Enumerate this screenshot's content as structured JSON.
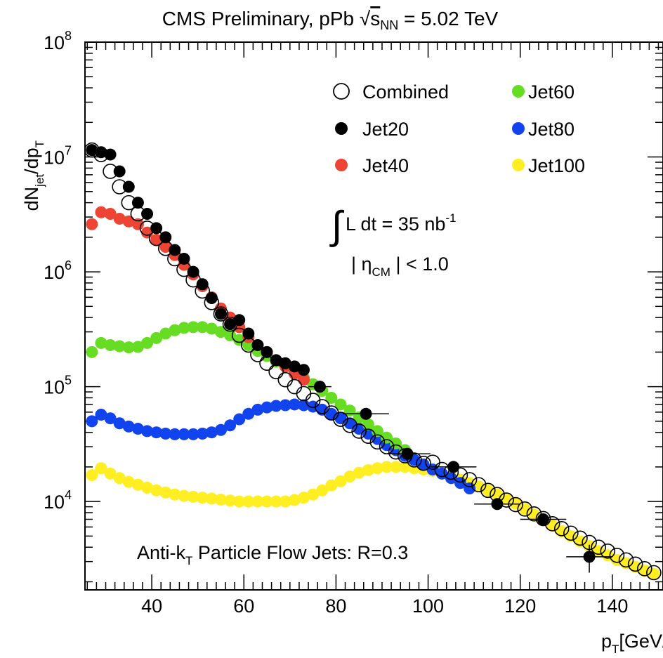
{
  "chart_data": {
    "type": "scatter",
    "title": {
      "prefix": "CMS Preliminary, pPb ",
      "sqrt_symbol": "√",
      "s": "s",
      "sub": "NN",
      "suffix": " = 5.02 TeV"
    },
    "xlabel": {
      "main": "p",
      "sub": "T",
      "unit": "[GeV/c]"
    },
    "ylabel": {
      "a": "dN",
      "a_sub": "jet",
      "b": "/dp",
      "b_sub": "T"
    },
    "x_ticks": [
      "40",
      "60",
      "80",
      "100",
      "120",
      "140"
    ],
    "x_tick_values": [
      40,
      60,
      80,
      100,
      120,
      140
    ],
    "y_ticks": [
      {
        "base": "10",
        "exp": "4",
        "value": 10000
      },
      {
        "base": "10",
        "exp": "5",
        "value": 100000
      },
      {
        "base": "10",
        "exp": "6",
        "value": 1000000
      },
      {
        "base": "10",
        "exp": "7",
        "value": 10000000
      },
      {
        "base": "10",
        "exp": "8",
        "value": 100000000
      }
    ],
    "xlim": [
      25.5,
      151
    ],
    "ylim": [
      1700,
      100000000
    ],
    "y_log": true,
    "legend_position": "top-right",
    "legend": [
      {
        "name": "Combined",
        "color": "#000000",
        "marker": "open-circle"
      },
      {
        "name": "Jet60",
        "color": "#66dd22",
        "marker": "filled-circle"
      },
      {
        "name": "Jet20",
        "color": "#000000",
        "marker": "filled-circle"
      },
      {
        "name": "Jet80",
        "color": "#1144ee",
        "marker": "filled-circle"
      },
      {
        "name": "Jet40",
        "color": "#ee4433",
        "marker": "filled-circle"
      },
      {
        "name": "Jet100",
        "color": "#ffee22",
        "marker": "filled-circle"
      }
    ],
    "annotations": {
      "lumi_integral": "∫",
      "lumi_text": "L dt = 35 nb",
      "lumi_exp": "-1",
      "eta_prefix": "| η",
      "eta_sub": "CM",
      "eta_suffix": " | < 1.0",
      "algo_prefix": "Anti-k",
      "algo_sub": "T",
      "algo_suffix": " Particle Flow Jets: R=0.3"
    },
    "series": [
      {
        "name": "Jet20",
        "color": "#000000",
        "x": [
          27,
          29,
          31,
          33,
          35,
          37,
          39,
          41,
          43,
          45,
          47,
          49,
          51,
          53,
          55,
          57,
          59,
          61,
          63,
          65,
          67,
          69,
          71,
          73,
          76.5,
          86.5,
          95.5,
          105.5,
          115,
          125,
          135
        ],
        "y": [
          11500000,
          11000000,
          10500000,
          7500000,
          5500000,
          4000000,
          3200000,
          2400000,
          2000000,
          1550000,
          1300000,
          1000000,
          780000,
          590000,
          430000,
          350000,
          380000,
          290000,
          230000,
          200000,
          170000,
          160000,
          150000,
          140000,
          100000,
          58000,
          26000,
          20000,
          9500,
          7000,
          3300
        ],
        "xerr": [
          0,
          0,
          0,
          0,
          0,
          0,
          0,
          0,
          0,
          0,
          0,
          0,
          0,
          0,
          0,
          0,
          0,
          0,
          0,
          0,
          0,
          0,
          0,
          0,
          2.5,
          5,
          5,
          5,
          5,
          5,
          5
        ],
        "yerr": [
          0,
          0,
          0,
          0,
          0,
          0,
          0,
          0,
          0,
          0,
          0,
          0,
          0,
          0,
          0,
          0,
          0,
          0,
          0,
          0,
          0,
          0,
          0,
          0,
          0,
          0,
          0,
          0,
          1000,
          0,
          900
        ]
      },
      {
        "name": "Jet40",
        "color": "#ee4433",
        "x": [
          27,
          29,
          31,
          33,
          35,
          37,
          39,
          41,
          43,
          45,
          47,
          49,
          51,
          53,
          55,
          57,
          59,
          61,
          63,
          65,
          67,
          69,
          71,
          73
        ],
        "y": [
          2600000,
          3300000,
          3200000,
          2900000,
          2750000,
          2600000,
          2200000,
          1900000,
          1650000,
          1400000,
          1150000,
          950000,
          750000,
          600000,
          480000,
          400000,
          330000,
          270000,
          230000,
          200000,
          170000,
          150000,
          130000,
          115000
        ]
      },
      {
        "name": "Jet60",
        "color": "#66dd22",
        "x": [
          27,
          29,
          31,
          33,
          35,
          37,
          39,
          41,
          43,
          45,
          47,
          49,
          51,
          53,
          55,
          57,
          59,
          61,
          63,
          65,
          67,
          69,
          71,
          73,
          75,
          77,
          79,
          81,
          83,
          85,
          87,
          89,
          91,
          93,
          95
        ],
        "y": [
          200000,
          240000,
          230000,
          225000,
          220000,
          222000,
          240000,
          265000,
          290000,
          310000,
          325000,
          330000,
          330000,
          320000,
          300000,
          280000,
          255000,
          230000,
          205000,
          185000,
          165000,
          150000,
          135000,
          120000,
          105000,
          92000,
          80000,
          70000,
          62000,
          54000,
          47000,
          41000,
          36000,
          32000,
          28000
        ]
      },
      {
        "name": "Jet80",
        "color": "#1144ee",
        "x": [
          27,
          29,
          31,
          33,
          35,
          37,
          39,
          41,
          43,
          45,
          47,
          49,
          51,
          53,
          55,
          57,
          59,
          61,
          63,
          65,
          67,
          69,
          71,
          73,
          75,
          77,
          79,
          81,
          83,
          85,
          87,
          89,
          91,
          93,
          95,
          97,
          99,
          101,
          103,
          105,
          107,
          109
        ],
        "y": [
          50000,
          57000,
          53000,
          48000,
          45000,
          43000,
          41000,
          40000,
          39000,
          38500,
          38500,
          38500,
          39000,
          40000,
          42000,
          46000,
          52000,
          58000,
          63000,
          66000,
          68000,
          69000,
          70000,
          69000,
          67000,
          63000,
          58000,
          53000,
          48000,
          43000,
          39000,
          35000,
          31000,
          28000,
          25000,
          23000,
          21000,
          19000,
          17500,
          16000,
          14500,
          13000
        ]
      },
      {
        "name": "Jet100",
        "color": "#ffee22",
        "x": [
          27,
          29,
          31,
          33,
          35,
          37,
          39,
          41,
          43,
          45,
          47,
          49,
          51,
          53,
          55,
          57,
          59,
          61,
          63,
          65,
          67,
          69,
          71,
          73,
          75,
          77,
          79,
          81,
          83,
          85,
          87,
          89,
          91,
          93,
          95,
          97,
          99,
          101,
          103,
          105,
          107,
          109,
          111,
          113,
          115,
          117,
          119,
          121,
          123,
          125,
          127,
          129,
          131,
          133,
          135,
          137,
          139,
          141,
          143,
          145,
          147,
          149
        ],
        "y": [
          17000,
          19500,
          17500,
          16000,
          14800,
          14000,
          13200,
          12500,
          12000,
          11500,
          11200,
          11000,
          10800,
          10600,
          10400,
          10200,
          10000,
          10000,
          10000,
          10000,
          10000,
          10000,
          10300,
          10800,
          11500,
          12500,
          13800,
          15000,
          16500,
          17800,
          18800,
          19500,
          20000,
          20000,
          20000,
          19500,
          19000,
          18500,
          17500,
          16500,
          15500,
          14500,
          13500,
          12500,
          11500,
          10500,
          9600,
          8600,
          7700,
          6900,
          6200,
          5500,
          5000,
          4500,
          4100,
          3700,
          3400,
          3100,
          2900,
          2700,
          2500,
          2350
        ]
      },
      {
        "name": "Combined",
        "color": "#000000",
        "x": [
          27,
          29,
          31,
          33,
          35,
          37,
          39,
          41,
          43,
          45,
          47,
          49,
          51,
          53,
          55,
          57,
          59,
          61,
          63,
          65,
          67,
          69,
          71,
          73,
          75,
          77,
          79,
          81,
          83,
          85,
          87,
          89,
          91,
          93,
          95,
          97,
          99,
          101,
          103,
          105,
          107,
          109,
          111,
          113,
          115,
          117,
          119,
          121,
          123,
          125,
          127,
          129,
          131,
          133,
          135,
          137,
          139,
          141,
          143,
          145,
          147,
          149
        ],
        "y": [
          11500000,
          10500000,
          7500000,
          5500000,
          4000000,
          3200000,
          2400000,
          1950000,
          1600000,
          1300000,
          1050000,
          850000,
          680000,
          540000,
          430000,
          350000,
          280000,
          230000,
          190000,
          160000,
          135000,
          115000,
          100000,
          87000,
          76000,
          67000,
          59000,
          52000,
          46000,
          41000,
          37000,
          33000,
          30000,
          27000,
          25000,
          23000,
          21500,
          22000,
          19000,
          18000,
          17000,
          15500,
          14000,
          12500,
          11500,
          10300,
          9400,
          8600,
          7800,
          7100,
          6400,
          5800,
          5300,
          4800,
          4400,
          4000,
          3700,
          3400,
          3100,
          2850,
          2600,
          2400
        ]
      }
    ]
  }
}
